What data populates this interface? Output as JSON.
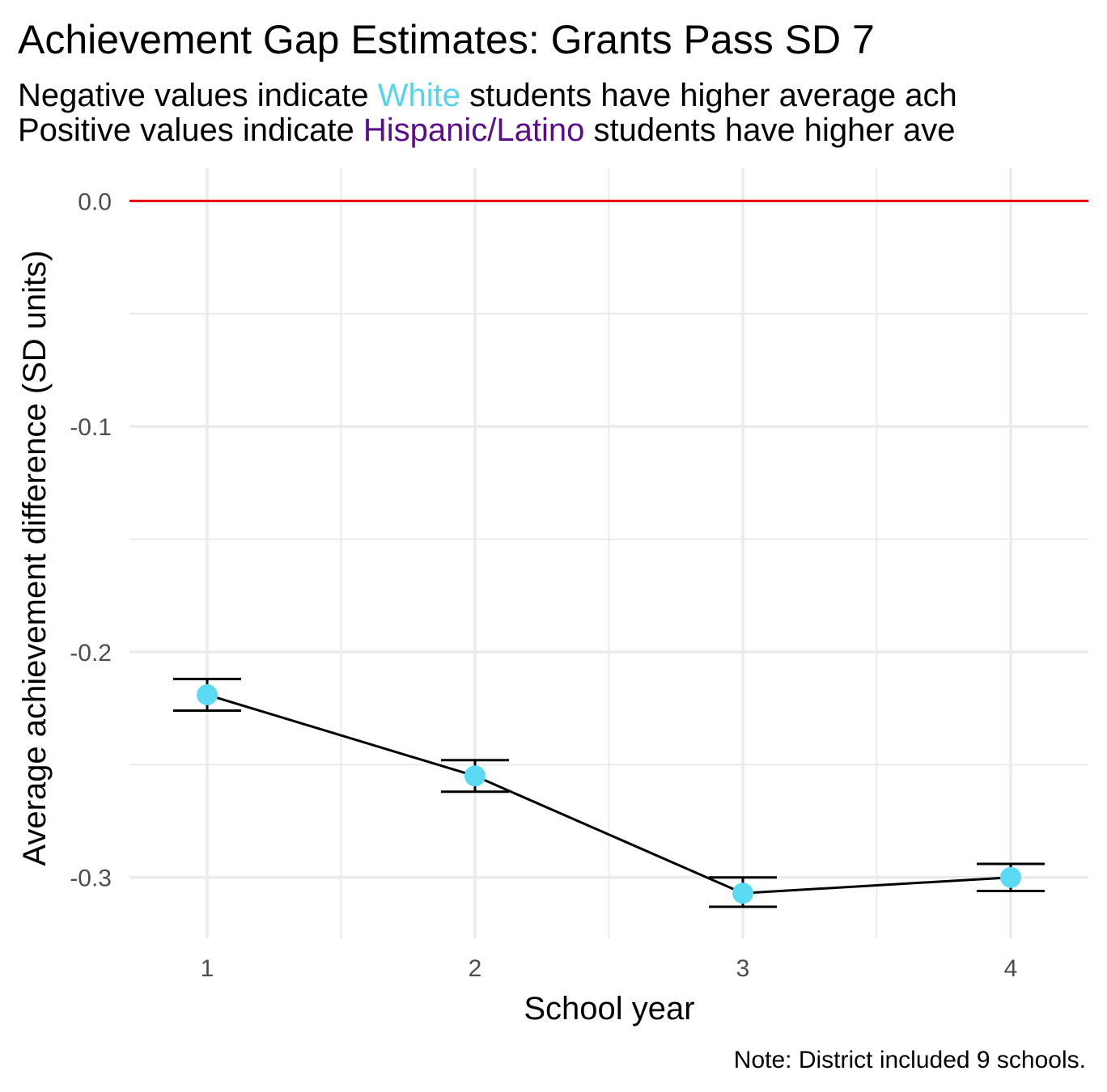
{
  "title": "Achievement Gap Estimates: Grants Pass SD 7",
  "subtitle": {
    "line1": {
      "before": "Negative values indicate ",
      "group": "White",
      "after": " students have higher average ach"
    },
    "line2": {
      "before": "Positive values indicate ",
      "group": "Hispanic/Latino",
      "after": " students have higher ave"
    }
  },
  "colors": {
    "white_group": "#56d4ed",
    "hispanic_group": "#5b0c8b",
    "reference_line": "#e8000b",
    "point_fill": "#5bdbf3",
    "line": "#000000",
    "grid": "#ebebeb"
  },
  "caption": "Note: District included 9 schools.",
  "chart_data": {
    "type": "line",
    "title": "Achievement Gap Estimates: Grants Pass SD 7",
    "xlabel": "School year",
    "ylabel": "Average achievement difference (SD units)",
    "x": [
      1,
      2,
      3,
      4
    ],
    "x_tick_labels": [
      "1",
      "2",
      "3",
      "4"
    ],
    "y_ticks": [
      0.0,
      -0.1,
      -0.2,
      -0.3
    ],
    "y_tick_labels": [
      "0.0",
      "-0.1",
      "-0.2",
      "-0.3"
    ],
    "xlim": [
      0.71,
      4.29
    ],
    "ylim": [
      -0.327,
      0.0145
    ],
    "series": [
      {
        "values": [
          -0.219,
          -0.255,
          -0.307,
          -0.3
        ],
        "ci_low": [
          -0.226,
          -0.262,
          -0.313,
          -0.306
        ],
        "ci_high": [
          -0.212,
          -0.248,
          -0.3,
          -0.294
        ]
      }
    ],
    "reference_line": {
      "y": 0.0
    },
    "grid": true,
    "legend": "none"
  }
}
